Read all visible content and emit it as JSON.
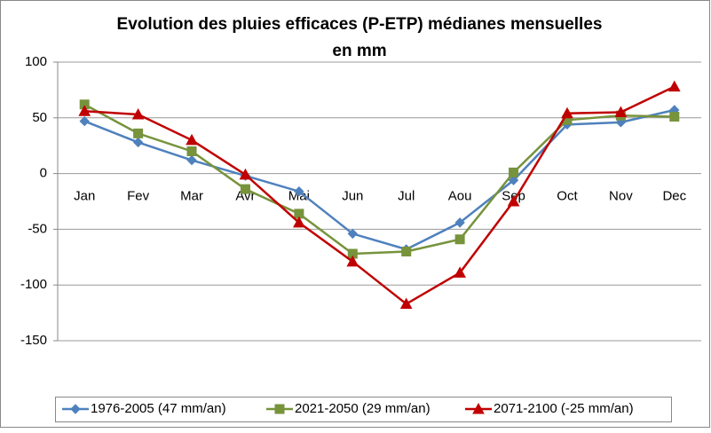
{
  "chart_data": {
    "type": "line",
    "title_lines": [
      "Evolution des pluies efficaces (P-ETP) médianes mensuelles",
      "en mm"
    ],
    "categories": [
      "Jan",
      "Fev",
      "Mar",
      "Avr",
      "Mai",
      "Jun",
      "Jul",
      "Aou",
      "Sep",
      "Oct",
      "Nov",
      "Dec"
    ],
    "series": [
      {
        "name": "1976-2005 (47 mm/an)",
        "color": "#4f81bd",
        "marker": "diamond",
        "values": [
          47,
          28,
          12,
          -2,
          -16,
          -54,
          -68,
          -44,
          -6,
          44,
          46,
          57
        ]
      },
      {
        "name": "2021-2050 (29 mm/an)",
        "color": "#77933c",
        "marker": "square",
        "values": [
          62,
          36,
          20,
          -14,
          -36,
          -72,
          -70,
          -59,
          1,
          48,
          52,
          51
        ]
      },
      {
        "name": "2071-2100 (-25 mm/an)",
        "color": "#c00000",
        "marker": "triangle",
        "values": [
          56,
          53,
          30,
          -1,
          -44,
          -79,
          -117,
          -89,
          -25,
          54,
          55,
          78
        ]
      }
    ],
    "ylim": [
      -150,
      100
    ],
    "yticks": [
      -150,
      -100,
      -50,
      0,
      50,
      100
    ],
    "grid": true,
    "legend": "bottom"
  }
}
